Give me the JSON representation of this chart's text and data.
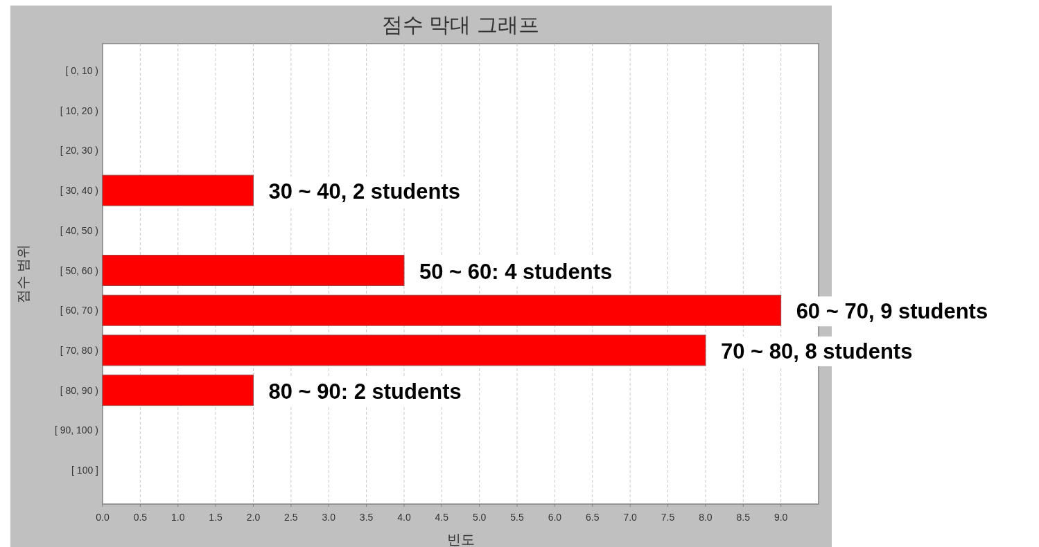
{
  "chart_data": {
    "type": "bar",
    "orientation": "horizontal",
    "title": "점수 막대 그래프",
    "xlabel": "빈도",
    "ylabel": "점수 범위",
    "categories": [
      "[ 0, 10 )",
      "[ 10, 20 )",
      "[ 20, 30 )",
      "[ 30, 40 )",
      "[ 40, 50 )",
      "[ 50, 60 )",
      "[ 60, 70 )",
      "[ 70, 80 )",
      "[ 80, 90 )",
      "[ 90, 100 )",
      "[ 100 ]"
    ],
    "values": [
      0,
      0,
      0,
      2,
      0,
      4,
      9,
      8,
      2,
      0,
      0
    ],
    "color": "#ff0000",
    "xlim": [
      0,
      9.5
    ],
    "xticks": [
      {
        "value": 0,
        "label": "0.0"
      },
      {
        "value": 0.5,
        "label": "0.5"
      },
      {
        "value": 1,
        "label": "1.0"
      },
      {
        "value": 1.5,
        "label": "1.5"
      },
      {
        "value": 2,
        "label": "2.0"
      },
      {
        "value": 2.5,
        "label": "2.5"
      },
      {
        "value": 3,
        "label": "3.0"
      },
      {
        "value": 3.5,
        "label": "3.5"
      },
      {
        "value": 4,
        "label": "4.0"
      },
      {
        "value": 4.5,
        "label": "4.5"
      },
      {
        "value": 5,
        "label": "5.0"
      },
      {
        "value": 5.5,
        "label": "5.5"
      },
      {
        "value": 6,
        "label": "6.0"
      },
      {
        "value": 6.5,
        "label": "6.5"
      },
      {
        "value": 7,
        "label": "7.0"
      },
      {
        "value": 7.5,
        "label": "7.5"
      },
      {
        "value": 8,
        "label": "8.0"
      },
      {
        "value": 8.5,
        "label": "8.5"
      },
      {
        "value": 9,
        "label": "9.0"
      }
    ],
    "grid": "x",
    "annotations": [
      {
        "text": "30 ~ 40, 2 students",
        "x": 2,
        "y": "[ 30, 40 )"
      },
      {
        "text": "50 ~ 60: 4 students",
        "x": 4,
        "y": "[ 50, 60 )"
      },
      {
        "text": "60 ~ 70, 9 students",
        "x": 9,
        "y": "[ 60, 70 )"
      },
      {
        "text": "70 ~ 80, 8 students",
        "x": 8,
        "y": "[ 70, 80 )"
      },
      {
        "text": "80 ~ 90: 2 students",
        "x": 2,
        "y": "[ 80, 90 )"
      }
    ]
  }
}
